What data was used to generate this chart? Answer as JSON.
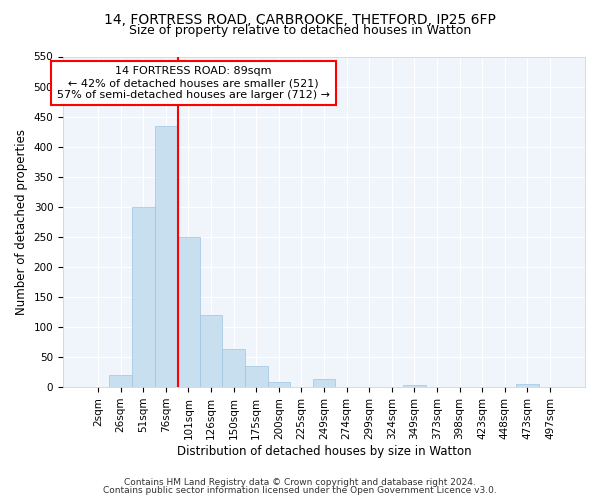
{
  "title": "14, FORTRESS ROAD, CARBROOKE, THETFORD, IP25 6FP",
  "subtitle": "Size of property relative to detached houses in Watton",
  "xlabel": "Distribution of detached houses by size in Watton",
  "ylabel": "Number of detached properties",
  "bar_labels": [
    "2sqm",
    "26sqm",
    "51sqm",
    "76sqm",
    "101sqm",
    "126sqm",
    "150sqm",
    "175sqm",
    "200sqm",
    "225sqm",
    "249sqm",
    "274sqm",
    "299sqm",
    "324sqm",
    "349sqm",
    "373sqm",
    "398sqm",
    "423sqm",
    "448sqm",
    "473sqm",
    "497sqm"
  ],
  "bar_values": [
    0,
    20,
    300,
    435,
    250,
    120,
    63,
    35,
    8,
    0,
    13,
    0,
    0,
    0,
    3,
    0,
    0,
    0,
    0,
    5,
    0
  ],
  "bar_color": "#c8dff0",
  "bar_edge_color": "#a0c4e0",
  "vline_color": "red",
  "vline_pos": 3.52,
  "ylim": [
    0,
    550
  ],
  "yticks": [
    0,
    50,
    100,
    150,
    200,
    250,
    300,
    350,
    400,
    450,
    500,
    550
  ],
  "annotation_title": "14 FORTRESS ROAD: 89sqm",
  "annotation_line1": "← 42% of detached houses are smaller (521)",
  "annotation_line2": "57% of semi-detached houses are larger (712) →",
  "footer1": "Contains HM Land Registry data © Crown copyright and database right 2024.",
  "footer2": "Contains public sector information licensed under the Open Government Licence v3.0.",
  "title_fontsize": 10,
  "subtitle_fontsize": 9,
  "label_fontsize": 8.5,
  "tick_fontsize": 7.5,
  "annotation_fontsize": 8,
  "footer_fontsize": 6.5
}
